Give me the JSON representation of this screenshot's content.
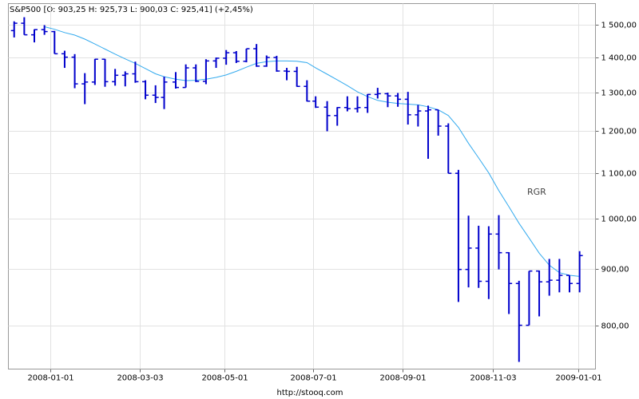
{
  "chart_data": {
    "type": "ohlc",
    "title": "S&P500 [O: 903,25  H: 925,73  L: 900,03  C: 925,41] (+2,45%)",
    "annotation": "RGR",
    "source": "http://stooq.com",
    "ylog": true,
    "grid": true,
    "color": "#0000cc",
    "x": [
      "2007-12-07",
      "2007-12-14",
      "2007-12-21",
      "2007-12-28",
      "2008-01-04",
      "2008-01-11",
      "2008-01-18",
      "2008-01-25",
      "2008-02-01",
      "2008-02-08",
      "2008-02-15",
      "2008-02-22",
      "2008-02-29",
      "2008-03-07",
      "2008-03-14",
      "2008-03-20",
      "2008-03-28",
      "2008-04-04",
      "2008-04-11",
      "2008-04-18",
      "2008-04-25",
      "2008-05-02",
      "2008-05-09",
      "2008-05-16",
      "2008-05-23",
      "2008-05-30",
      "2008-06-06",
      "2008-06-13",
      "2008-06-20",
      "2008-06-27",
      "2008-07-03",
      "2008-07-11",
      "2008-07-18",
      "2008-07-25",
      "2008-08-01",
      "2008-08-08",
      "2008-08-15",
      "2008-08-22",
      "2008-08-29",
      "2008-09-05",
      "2008-09-12",
      "2008-09-19",
      "2008-09-26",
      "2008-10-03",
      "2008-10-10",
      "2008-10-17",
      "2008-10-24",
      "2008-10-31",
      "2008-11-07",
      "2008-11-14",
      "2008-11-21",
      "2008-11-28",
      "2008-12-05",
      "2008-12-12",
      "2008-12-19",
      "2008-12-26",
      "2009-01-02"
    ],
    "open": [
      1481,
      1504,
      1468,
      1484,
      1478,
      1411,
      1401,
      1325,
      1330,
      1395,
      1331,
      1349,
      1353,
      1331,
      1294,
      1288,
      1330,
      1315,
      1370,
      1332,
      1390,
      1398,
      1414,
      1389,
      1426,
      1375,
      1400,
      1361,
      1360,
      1318,
      1278,
      1262,
      1240,
      1261,
      1258,
      1261,
      1296,
      1298,
      1292,
      1283,
      1242,
      1252,
      1255,
      1213,
      1099,
      899,
      940,
      877,
      968,
      931,
      873,
      800,
      896,
      876,
      879,
      888,
      873
    ],
    "high": [
      1510,
      1523,
      1485,
      1498,
      1480,
      1420,
      1410,
      1355,
      1396,
      1396,
      1367,
      1360,
      1388,
      1335,
      1321,
      1345,
      1358,
      1380,
      1380,
      1395,
      1400,
      1422,
      1419,
      1426,
      1440,
      1406,
      1405,
      1370,
      1373,
      1335,
      1291,
      1278,
      1262,
      1291,
      1291,
      1297,
      1314,
      1301,
      1300,
      1303,
      1268,
      1266,
      1255,
      1220,
      1107,
      1006,
      985,
      984,
      1007,
      932,
      878,
      896,
      897,
      919,
      919,
      888,
      934
    ],
    "low": [
      1460,
      1468,
      1445,
      1468,
      1411,
      1370,
      1313,
      1270,
      1322,
      1317,
      1320,
      1318,
      1328,
      1283,
      1273,
      1257,
      1312,
      1315,
      1330,
      1324,
      1370,
      1379,
      1384,
      1386,
      1373,
      1373,
      1359,
      1335,
      1317,
      1277,
      1260,
      1200,
      1214,
      1251,
      1248,
      1247,
      1285,
      1262,
      1263,
      1217,
      1212,
      1133,
      1189,
      1099,
      840,
      866,
      865,
      845,
      899,
      819,
      741,
      800,
      815,
      851,
      857,
      857,
      857
    ],
    "close": [
      1504,
      1468,
      1484,
      1478,
      1411,
      1401,
      1325,
      1330,
      1395,
      1331,
      1349,
      1353,
      1331,
      1294,
      1288,
      1330,
      1315,
      1370,
      1332,
      1390,
      1398,
      1414,
      1389,
      1426,
      1375,
      1400,
      1361,
      1360,
      1318,
      1278,
      1262,
      1240,
      1261,
      1258,
      1261,
      1296,
      1298,
      1292,
      1283,
      1242,
      1252,
      1255,
      1213,
      1099,
      899,
      940,
      877,
      968,
      931,
      873,
      800,
      896,
      876,
      879,
      888,
      873,
      925.41
    ],
    "ma": {
      "color": "#33aaee",
      "values": [
        null,
        null,
        null,
        1493,
        1485,
        1475,
        1467,
        1455,
        1440,
        1425,
        1410,
        1396,
        1383,
        1368,
        1353,
        1345,
        1338,
        1334,
        1335,
        1338,
        1343,
        1350,
        1360,
        1372,
        1383,
        1388,
        1390,
        1390,
        1389,
        1385,
        1370,
        1352,
        1336,
        1320,
        1303,
        1290,
        1280,
        1275,
        1272,
        1270,
        1268,
        1263,
        1255,
        1240,
        1210,
        1170,
        1135,
        1100,
        1060,
        1025,
        990,
        960,
        930,
        907,
        893,
        888,
        886
      ]
    },
    "xlim": [
      "2007-12-03",
      "2009-01-13"
    ],
    "xticks": [
      "2008-01-01",
      "2008-03-03",
      "2008-05-01",
      "2008-07-01",
      "2008-09-01",
      "2008-11-03",
      "2009-01-01"
    ],
    "ylim": [
      730,
      1567
    ],
    "yticks": [
      {
        "value": 800,
        "label": "800,00"
      },
      {
        "value": 900,
        "label": "900,00"
      },
      {
        "value": 1000,
        "label": "1 000,00"
      },
      {
        "value": 1100,
        "label": "1 100,00"
      },
      {
        "value": 1200,
        "label": "1 200,00"
      },
      {
        "value": 1300,
        "label": "1 300,00"
      },
      {
        "value": 1400,
        "label": "1 400,00"
      },
      {
        "value": 1500,
        "label": "1 500,00"
      }
    ]
  }
}
